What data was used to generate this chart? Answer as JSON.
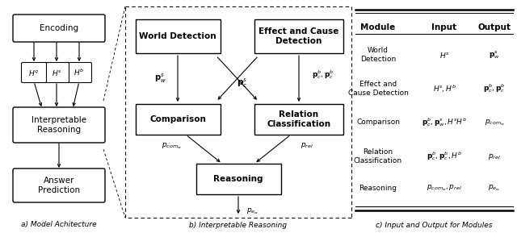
{
  "fig_width": 6.4,
  "fig_height": 2.89,
  "bg_color": "#ffffff",
  "panel_a_label": "a) Model Achitecture",
  "panel_b_label": "b) Interpretable Reasoning",
  "panel_c_label": "c) Input and Output for Modules",
  "table_headers": [
    "Module",
    "Input",
    "Output"
  ],
  "table_rows": [
    {
      "module": "World\nDetection",
      "input": "$H^s$",
      "output": "$\\mathbf{p}_w^s$"
    },
    {
      "module": "Effect and\nCause Detection",
      "input": "$H^s, H^b$",
      "output": "$\\mathbf{p}_c^b, \\mathbf{p}_c^b$"
    },
    {
      "module": "Comparison",
      "input": "$\\mathbf{p}_c^b, \\mathbf{p}_w^s, H^sH^b$",
      "output": "$p_{com_w}$"
    },
    {
      "module": "Relation\nClassification",
      "input": "$\\mathbf{p}_c^b, \\mathbf{p}_c^b, H^b$",
      "output": "$p_{rel}$"
    },
    {
      "module": "Reasoning",
      "input": "$p_{com_w}, p_{rel}$",
      "output": "$p_{e_w}$"
    }
  ]
}
